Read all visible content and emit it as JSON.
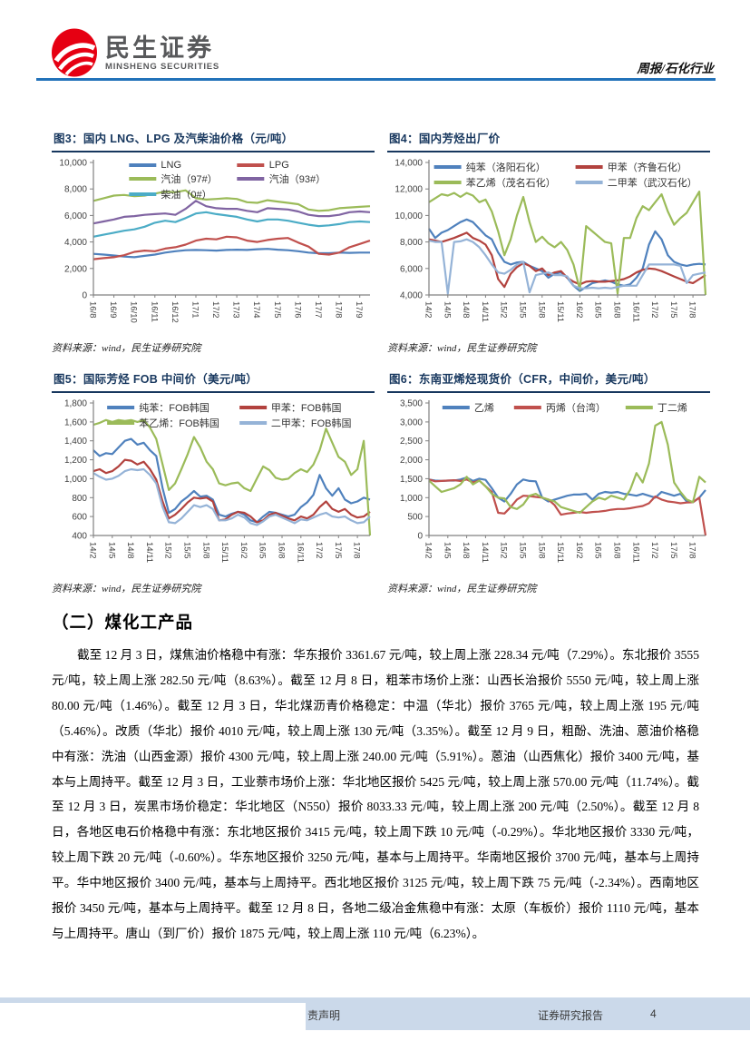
{
  "header": {
    "logo_cn": "民生证券",
    "logo_en": "MINSHENG SECURITIES",
    "report_tag": "周报/石化行业"
  },
  "colors": {
    "brand_red": "#E60012",
    "title_navy": "#17375E",
    "rule_blue": "#2272B9",
    "footer_band": "#CBD9EA"
  },
  "source_note": "资料来源：wind，民生证券研究院",
  "section": {
    "heading": "（二）煤化工产品",
    "paragraph": "截至 12 月 3 日，煤焦油价格稳中有涨：华东报价 3361.67 元/吨，较上周上涨 228.34 元/吨（7.29%）。东北报价 3555 元/吨，较上周上涨 282.50 元/吨（8.63%）。截至 12 月 8 日，粗苯市场价上涨：山西长治报价 5550 元/吨，较上周上涨 80.00 元/吨（1.46%）。截至 12 月 3 日，华北煤沥青价格稳定：中温（华北）报价 3765 元/吨，较上周上涨 195 元/吨（5.46%）。改质（华北）报价 4010 元/吨，较上周上涨 130 元/吨（3.35%）。截至 12 月 9 日，粗酚、洗油、蒽油价格稳中有涨：洗油（山西金源）报价 4300 元/吨，较上周上涨 240.00 元/吨（5.91%）。蒽油（山西焦化）报价 3400 元/吨，基本与上周持平。截至 12 月 3 日，工业萘市场价上涨：华北地区报价 5425 元/吨，较上周上涨 570.00 元/吨（11.74%）。截至 12 月 3 日，炭黑市场价稳定：华北地区（N550）报价 8033.33 元/吨，较上周上涨 200 元/吨（2.50%）。截至 12 月 8 日，各地区电石价格稳中有涨：东北地区报价 3415 元/吨，较上周下跌 10 元/吨（-0.29%）。华北地区报价 3330 元/吨，较上周下跌 20 元/吨（-0.60%）。华东地区报价 3250 元/吨，基本与上周持平。华南地区报价 3700 元/吨，基本与上周持平。华中地区报价 3400 元/吨，基本与上周持平。西北地区报价 3125 元/吨，较上周下跌 75 元/吨（-2.34%）。西南地区报价 3450 元/吨，基本与上周持平。截至 12 月 8 日，各地二级冶金焦稳中有涨：太原（车板价）报价 1110 元/吨，基本与上周持平。唐山（到厂价）报价 1875 元/吨，较上周上涨 110 元/吨（6.23%）。"
  },
  "footer": {
    "disclaimer_fragment": "责声明",
    "report_type": "证券研究报告",
    "page_number": "4"
  },
  "chart_data": [
    {
      "type": "line",
      "title": "图3：国内 LNG、LPG 及汽柴油价格（元/吨）",
      "xlabel": "",
      "ylabel": "",
      "grid": false,
      "legend_position": "top",
      "legend_columns": 2,
      "ylim": [
        0,
        10000
      ],
      "yticks": [
        0,
        2000,
        4000,
        6000,
        8000,
        10000
      ],
      "x_labels": [
        "16/8",
        "16/9",
        "16/10",
        "16/11",
        "16/12",
        "17/1",
        "17/2",
        "17/3",
        "17/4",
        "17/5",
        "17/6",
        "17/7",
        "17/8",
        "17/9"
      ],
      "label_stride": 2,
      "series": [
        {
          "name": "LNG",
          "color": "#4F81BD",
          "values": [
            3100,
            3050,
            2980,
            2900,
            2850,
            2950,
            3050,
            3200,
            3300,
            3380,
            3400,
            3380,
            3350,
            3400,
            3420,
            3400,
            3450,
            3480,
            3420,
            3380,
            3300,
            3200,
            3150,
            3150,
            3200,
            3180,
            3200,
            3200
          ]
        },
        {
          "name": "LPG",
          "color": "#C0504D",
          "values": [
            2700,
            2780,
            2850,
            3000,
            3250,
            3350,
            3300,
            3500,
            3600,
            3800,
            4100,
            4250,
            4200,
            4400,
            4350,
            4100,
            4000,
            4150,
            4250,
            4300,
            3950,
            3650,
            3100,
            3050,
            3200,
            3600,
            3850,
            4100
          ]
        },
        {
          "name": "汽油（97#）",
          "color": "#9BBB59",
          "values": [
            7100,
            7300,
            7500,
            7550,
            7450,
            7500,
            7650,
            7800,
            7750,
            7900,
            7300,
            7200,
            7250,
            7300,
            7250,
            7000,
            6950,
            7150,
            7050,
            6950,
            6850,
            6450,
            6350,
            6400,
            6550,
            6600,
            6650,
            6700
          ]
        },
        {
          "name": "汽油（93#）",
          "color": "#8064A2",
          "values": [
            5400,
            5550,
            5700,
            5900,
            5950,
            6050,
            6100,
            6150,
            6050,
            6500,
            7100,
            6700,
            6550,
            6500,
            6500,
            6350,
            6250,
            6550,
            6500,
            6450,
            6300,
            6050,
            5950,
            5950,
            6050,
            6250,
            6300,
            6250
          ]
        },
        {
          "name": "柴油（0#）",
          "color": "#4BACC6",
          "values": [
            4400,
            4550,
            4700,
            4850,
            4950,
            5150,
            5450,
            5600,
            5500,
            5800,
            6150,
            6250,
            6100,
            6000,
            5900,
            5700,
            5550,
            5700,
            5700,
            5600,
            5450,
            5300,
            5200,
            5250,
            5350,
            5500,
            5550,
            5500
          ]
        }
      ]
    },
    {
      "type": "line",
      "title": "图4：国内芳烃出厂价",
      "xlabel": "",
      "ylabel": "",
      "grid": false,
      "legend_position": "top",
      "legend_columns": 2,
      "ylim": [
        4000,
        14000
      ],
      "yticks": [
        4000,
        6000,
        8000,
        10000,
        12000,
        14000
      ],
      "x_labels": [
        "14/2",
        "14/5",
        "14/8",
        "14/11",
        "15/2",
        "15/5",
        "15/8",
        "15/11",
        "16/2",
        "16/5",
        "16/8",
        "16/11",
        "17/2",
        "17/5",
        "17/8"
      ],
      "label_stride": 3,
      "series": [
        {
          "name": "纯苯（洛阳石化）",
          "color": "#4F81BD",
          "values": [
            9000,
            8300,
            8700,
            8900,
            9200,
            9500,
            9700,
            9500,
            9000,
            8500,
            8200,
            7200,
            6500,
            6300,
            6450,
            6500,
            6200,
            6000,
            5800,
            5300,
            5600,
            5700,
            5300,
            4700,
            4300,
            4600,
            4900,
            5000,
            5100,
            5000,
            4800,
            4700,
            4800,
            5300,
            6000,
            7800,
            8800,
            8200,
            7000,
            6500,
            6300,
            6200,
            6300,
            6350,
            6300
          ]
        },
        {
          "name": "甲苯（齐鲁石化）",
          "color": "#B2423E",
          "values": [
            8200,
            8100,
            8000,
            8150,
            8300,
            8500,
            8700,
            8300,
            8100,
            7800,
            7000,
            5200,
            4600,
            5600,
            6100,
            6400,
            6200,
            5800,
            6000,
            5500,
            5700,
            5800,
            5300,
            5000,
            4800,
            5000,
            5050,
            5000,
            5000,
            5050,
            5100,
            5200,
            5400,
            5700,
            5900,
            6000,
            5950,
            5800,
            5600,
            5400,
            5200,
            5000,
            4900,
            5200,
            5500
          ]
        },
        {
          "name": "苯乙烯（茂名石化）",
          "color": "#9BBB59",
          "values": [
            11000,
            11300,
            11600,
            11500,
            11700,
            11400,
            11700,
            11500,
            11000,
            11200,
            10300,
            8800,
            7000,
            8200,
            10000,
            11400,
            9500,
            8000,
            8400,
            7900,
            7600,
            8000,
            7400,
            6300,
            4400,
            9200,
            8800,
            8400,
            8000,
            7900,
            4100,
            8300,
            8300,
            9800,
            10700,
            10400,
            11000,
            11600,
            10300,
            9300,
            9800,
            10200,
            11000,
            11800,
            4000
          ]
        },
        {
          "name": "二甲苯（武汉石化）",
          "color": "#95B3D7",
          "values": [
            8100,
            8000,
            8000,
            4100,
            8000,
            8050,
            8200,
            8000,
            7600,
            7000,
            6300,
            5700,
            5600,
            5900,
            6300,
            6500,
            4200,
            5500,
            5600,
            5700,
            5500,
            5500,
            5400,
            4700,
            4500,
            4500,
            4550,
            4500,
            4550,
            4500,
            4600,
            4700,
            4700,
            4700,
            5500,
            6300,
            6300,
            6300,
            6300,
            6300,
            6200,
            4900,
            5500,
            5600,
            5700
          ]
        }
      ]
    },
    {
      "type": "line",
      "title": "图5：国际芳烃 FOB 中间价（美元/吨）",
      "xlabel": "",
      "ylabel": "",
      "grid": false,
      "legend_position": "top",
      "legend_columns": 2,
      "ylim": [
        400,
        1800
      ],
      "yticks": [
        400,
        600,
        800,
        1000,
        1200,
        1400,
        1600,
        1800
      ],
      "x_labels": [
        "14/2",
        "14/5",
        "14/8",
        "14/11",
        "15/2",
        "15/5",
        "15/8",
        "15/11",
        "16/2",
        "16/5",
        "16/8",
        "16/11",
        "17/2",
        "17/5",
        "17/8"
      ],
      "label_stride": 3,
      "series": [
        {
          "name": "纯苯：FOB韩国",
          "color": "#4F81BD",
          "values": [
            1300,
            1240,
            1270,
            1260,
            1330,
            1400,
            1420,
            1360,
            1380,
            1300,
            1240,
            900,
            640,
            680,
            760,
            810,
            870,
            810,
            820,
            780,
            620,
            600,
            630,
            650,
            620,
            560,
            540,
            600,
            650,
            640,
            620,
            600,
            620,
            700,
            750,
            830,
            1040,
            900,
            820,
            900,
            780,
            740,
            760,
            800,
            780
          ]
        },
        {
          "name": "甲苯：FOB韩国",
          "color": "#B2423E",
          "values": [
            1080,
            1100,
            1060,
            1080,
            1130,
            1200,
            1190,
            1150,
            1180,
            1100,
            990,
            760,
            580,
            620,
            680,
            750,
            800,
            790,
            800,
            760,
            560,
            570,
            620,
            650,
            640,
            600,
            540,
            560,
            620,
            640,
            610,
            580,
            560,
            600,
            580,
            620,
            700,
            760,
            680,
            650,
            680,
            620,
            590,
            600,
            650
          ]
        },
        {
          "name": "苯乙烯：FOB韩国",
          "color": "#9BBB59",
          "values": [
            1570,
            1590,
            1620,
            1600,
            1620,
            1610,
            1620,
            1600,
            1620,
            1540,
            1420,
            1150,
            880,
            950,
            1100,
            1260,
            1440,
            1330,
            1180,
            1100,
            950,
            930,
            950,
            960,
            900,
            870,
            1000,
            1130,
            1090,
            1010,
            990,
            1000,
            1060,
            1100,
            1070,
            1150,
            1300,
            1530,
            1380,
            1230,
            1180,
            1040,
            1100,
            1400,
            400
          ]
        },
        {
          "name": "二甲苯：FOB韩国",
          "color": "#95B3D7",
          "values": [
            1060,
            1020,
            990,
            1000,
            1030,
            1080,
            1100,
            1090,
            1100,
            1040,
            950,
            700,
            540,
            530,
            580,
            650,
            720,
            700,
            720,
            680,
            560,
            560,
            580,
            620,
            590,
            530,
            510,
            550,
            600,
            620,
            590,
            560,
            530,
            570,
            560,
            590,
            620,
            640,
            600,
            590,
            600,
            560,
            530,
            540,
            600
          ]
        }
      ]
    },
    {
      "type": "line",
      "title": "图6：东南亚烯烃现货价（CFR，中间价，美元/吨）",
      "xlabel": "",
      "ylabel": "",
      "grid": false,
      "legend_position": "top",
      "legend_columns": 3,
      "ylim": [
        0,
        3500
      ],
      "yticks": [
        0,
        500,
        1000,
        1500,
        2000,
        2500,
        3000,
        3500
      ],
      "x_labels": [
        "14/2",
        "14/5",
        "14/8",
        "14/11",
        "15/2",
        "15/5",
        "15/8",
        "15/11",
        "16/2",
        "16/5",
        "16/8",
        "16/11",
        "17/2",
        "17/5",
        "17/8"
      ],
      "label_stride": 3,
      "series": [
        {
          "name": "乙烯",
          "color": "#4F81BD",
          "values": [
            1480,
            1450,
            1440,
            1450,
            1450,
            1480,
            1530,
            1440,
            1500,
            1470,
            1250,
            1000,
            900,
            1100,
            1350,
            1480,
            1440,
            1430,
            1000,
            900,
            950,
            1000,
            1050,
            1080,
            1080,
            1100,
            950,
            1100,
            1150,
            1130,
            1150,
            1100,
            1080,
            1050,
            1100,
            1050,
            1000,
            1150,
            1100,
            1050,
            1100,
            900,
            880,
            1000,
            1200
          ]
        },
        {
          "name": "丙烯（台湾）",
          "color": "#C0504D",
          "values": [
            1480,
            1430,
            1440,
            1450,
            1460,
            1440,
            1480,
            1400,
            1450,
            1300,
            1150,
            600,
            580,
            750,
            950,
            1050,
            1040,
            1020,
            1000,
            950,
            800,
            550,
            580,
            600,
            620,
            600,
            620,
            630,
            650,
            680,
            700,
            700,
            720,
            750,
            780,
            850,
            1030,
            950,
            900,
            880,
            850,
            870,
            880,
            1000,
            0
          ]
        },
        {
          "name": "丁二烯",
          "color": "#9BBB59",
          "values": [
            1450,
            1300,
            1150,
            1200,
            1250,
            1350,
            1550,
            1350,
            1450,
            1300,
            1100,
            1000,
            980,
            750,
            700,
            820,
            1050,
            1100,
            1000,
            950,
            900,
            750,
            700,
            650,
            600,
            750,
            900,
            1000,
            950,
            1050,
            1000,
            950,
            1200,
            1650,
            1400,
            1900,
            2900,
            3000,
            2400,
            1400,
            1150,
            950,
            880,
            1550,
            1400
          ]
        }
      ]
    }
  ]
}
